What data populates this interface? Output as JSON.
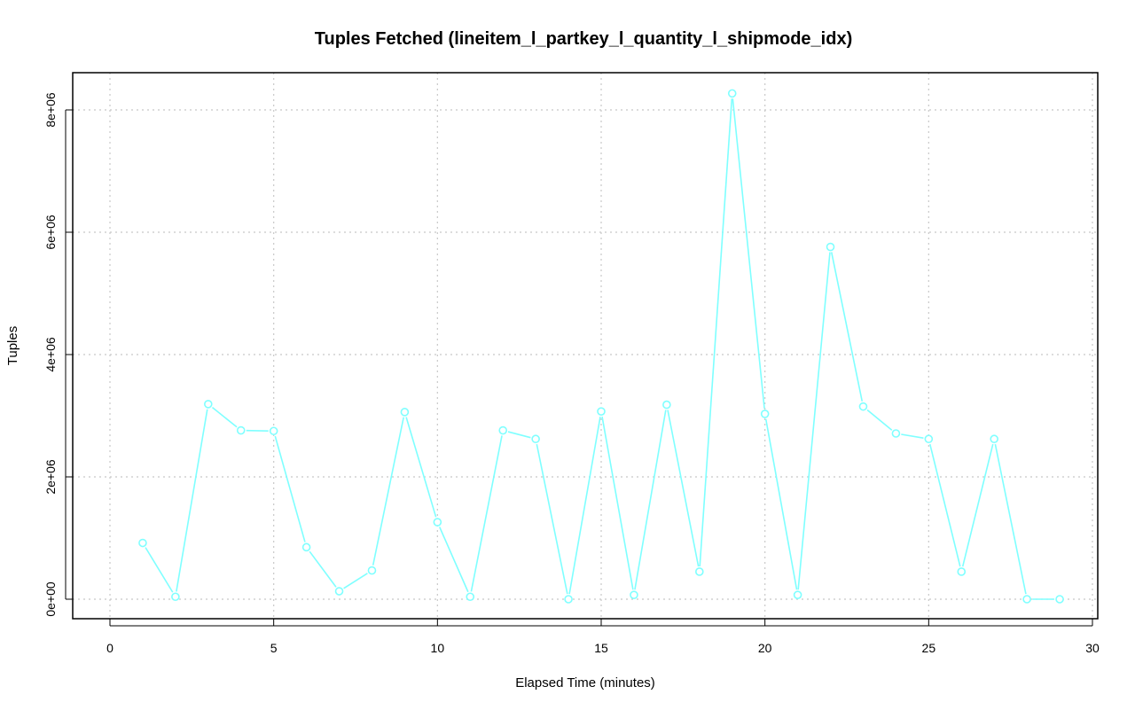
{
  "chart_data": {
    "type": "line",
    "title": "Tuples Fetched (lineitem_l_partkey_l_quantity_l_shipmode_idx)",
    "xlabel": "Elapsed Time (minutes)",
    "ylabel": "Tuples",
    "xlim": [
      0,
      30
    ],
    "ylim": [
      0,
      8000000
    ],
    "x_ticks": [
      0,
      5,
      10,
      15,
      20,
      25,
      30
    ],
    "x_tick_labels": [
      "0",
      "5",
      "10",
      "15",
      "20",
      "25",
      "30"
    ],
    "y_ticks": [
      0,
      2000000,
      4000000,
      6000000,
      8000000
    ],
    "y_tick_labels": [
      "0e+00",
      "2e+06",
      "4e+06",
      "6e+06",
      "8e+06"
    ],
    "grid": true,
    "series": [
      {
        "color": "#7fffff",
        "x": [
          1,
          2,
          3,
          4,
          5,
          6,
          7,
          8,
          9,
          10,
          11,
          12,
          13,
          14,
          15,
          16,
          17,
          18,
          19,
          20,
          21,
          22,
          23,
          24,
          25,
          26,
          27,
          28,
          29
        ],
        "values": [
          920000,
          40000,
          3190000,
          2760000,
          2750000,
          850000,
          130000,
          470000,
          3060000,
          1260000,
          40000,
          2760000,
          2620000,
          0,
          3070000,
          70000,
          3180000,
          450000,
          8270000,
          3030000,
          70000,
          5760000,
          3150000,
          2710000,
          2620000,
          450000,
          2620000,
          0,
          0
        ]
      }
    ]
  }
}
